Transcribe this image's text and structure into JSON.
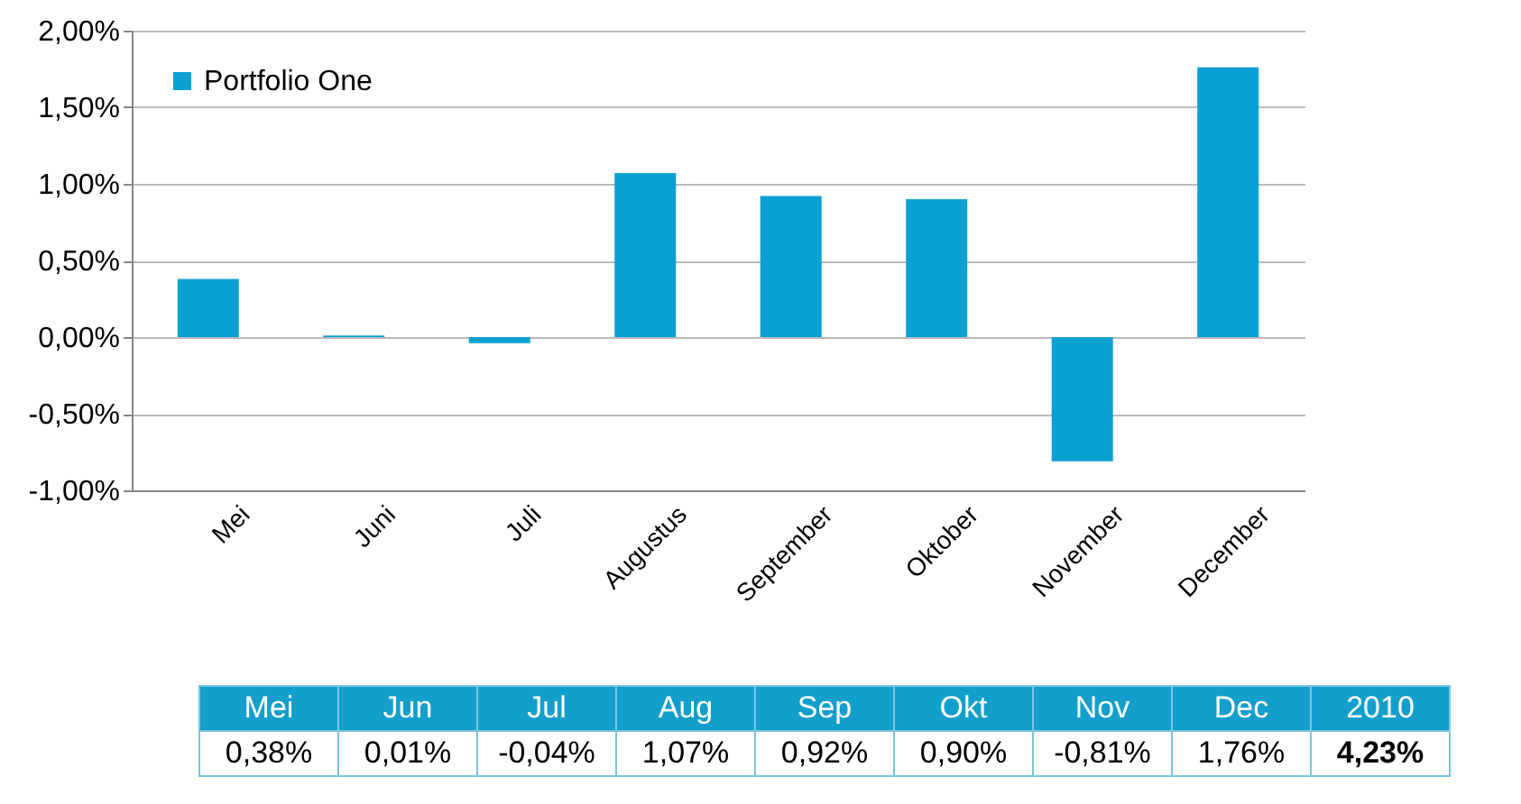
{
  "chart_data": {
    "type": "bar",
    "categories": [
      "Mei",
      "Juni",
      "Juli",
      "Augustus",
      "September",
      "Oktober",
      "November",
      "December"
    ],
    "series": [
      {
        "name": "Portfolio One",
        "color": "#0aa0d2",
        "values": [
          0.38,
          0.01,
          -0.04,
          1.07,
          0.92,
          0.9,
          -0.81,
          1.76
        ],
        "value_labels": [
          "0,38%",
          "0,01%",
          "-0,04%",
          "1,07%",
          "0,92%",
          "0,90%",
          "-0,81%",
          "1,76%"
        ]
      }
    ],
    "ylim": [
      -1,
      2
    ],
    "yticks": [
      {
        "value": -1,
        "label": "-1,00%"
      },
      {
        "value": -0.5,
        "label": "-0,50%"
      },
      {
        "value": 0,
        "label": "0,00%"
      },
      {
        "value": 0.5,
        "label": "0,50%"
      },
      {
        "value": 1,
        "label": "1,00%"
      },
      {
        "value": 1.5,
        "label": "1,50%"
      },
      {
        "value": 2,
        "label": "2,00%"
      }
    ],
    "grid": "y",
    "legend": "top left",
    "annotations": [
      "Mei",
      "Jun",
      "Jul",
      "Aug",
      "Sep",
      "Okt",
      "Nov",
      "Dec",
      "2010",
      "4,23%"
    ]
  }
}
